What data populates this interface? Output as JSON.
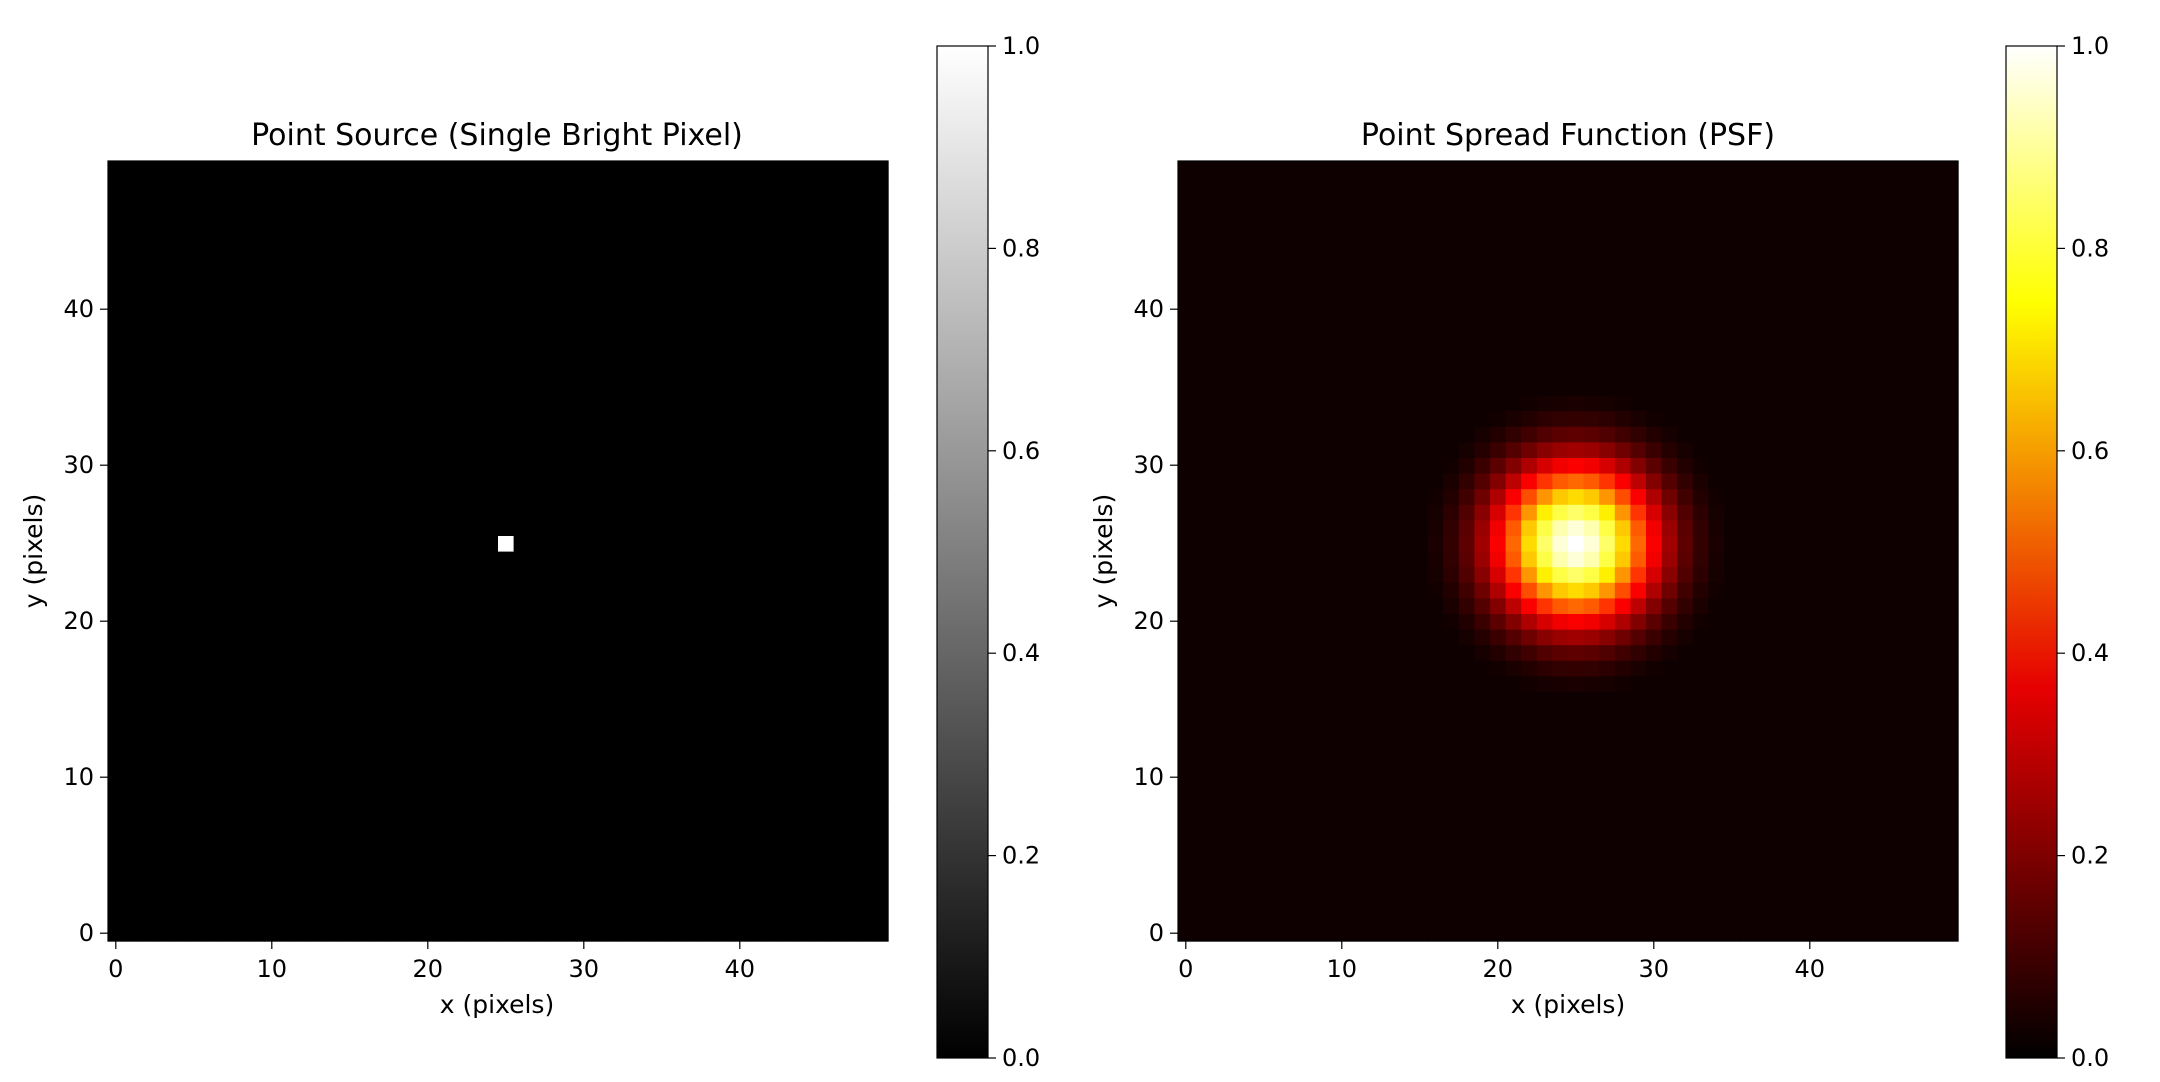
{
  "chart_data": [
    {
      "type": "heatmap",
      "title": "Point Source (Single Bright Pixel)",
      "xlabel": "x (pixels)",
      "ylabel": "y (pixels)",
      "grid_size": [
        50,
        50
      ],
      "xlim": [
        -0.5,
        49.5
      ],
      "ylim": [
        -0.5,
        49.5
      ],
      "xticks": [
        0,
        10,
        20,
        30,
        40
      ],
      "yticks": [
        0,
        10,
        20,
        30,
        40
      ],
      "colormap": "gray",
      "color_range": [
        0.0,
        1.0
      ],
      "grid": false,
      "data_description_values": {
        "kind": "point",
        "center": [
          25,
          25
        ],
        "peak": 1.0,
        "background": 0.0
      },
      "colorbar": {
        "ticks": [
          "0.0",
          "0.2",
          "0.4",
          "0.6",
          "0.8",
          "1.0"
        ],
        "stops": [
          "#000000",
          "#ffffff"
        ]
      }
    },
    {
      "type": "heatmap",
      "title": "Point Spread Function (PSF)",
      "xlabel": "x (pixels)",
      "ylabel": "y (pixels)",
      "grid_size": [
        50,
        50
      ],
      "xlim": [
        -0.5,
        49.5
      ],
      "ylim": [
        -0.5,
        49.5
      ],
      "xticks": [
        0,
        10,
        20,
        30,
        40
      ],
      "yticks": [
        0,
        10,
        20,
        30,
        40
      ],
      "colormap": "hot",
      "color_range": [
        0.0,
        1.0
      ],
      "grid": false,
      "data_description_values": {
        "kind": "gaussian",
        "center": [
          25,
          25
        ],
        "sigma": 3.5,
        "peak": 1.0,
        "background": 0.02
      },
      "colorbar": {
        "ticks": [
          "0.0",
          "0.2",
          "0.4",
          "0.6",
          "0.8",
          "1.0"
        ],
        "stops": [
          "#000000",
          "#e60000",
          "#ffff00",
          "#ffffff"
        ]
      }
    }
  ]
}
